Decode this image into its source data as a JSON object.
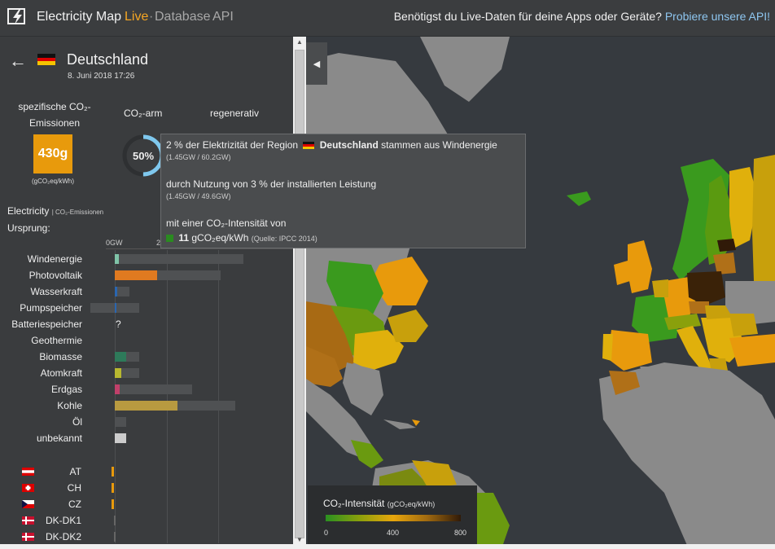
{
  "header": {
    "brand": "Electricity Map",
    "nav_live": "Live",
    "nav_database": "Database",
    "nav_api": "API",
    "nav_sep": "·",
    "promo_text": "Benötigst du Live-Daten für deine Apps oder Geräte?",
    "promo_link": "Probiere unsere API!"
  },
  "zone": {
    "back_icon": "←",
    "name": "Deutschland",
    "date": "8. Juni 2018 17:26",
    "co2_label": "spezifische CO₂-Emissionen",
    "co2_value": "430g",
    "co2_unit": "(gCO₂eq/kWh)",
    "lowcarbon_label": "CO₂-arm",
    "lowcarbon_value": "50%",
    "lowcarbon_fraction": 0.5,
    "renewable_label": "regenerativ"
  },
  "breakdown": {
    "title": "Electricity",
    "title_sub": "| CO₂-Emissionen",
    "origin_label": "Ursprung:",
    "axis_0": "0GW",
    "axis_2": "2",
    "rows": [
      {
        "label": "Windenergie",
        "color": "#7fc4a8"
      },
      {
        "label": "Photovoltaik",
        "color": "#e07a20"
      },
      {
        "label": "Wasserkraft",
        "color": "#2a66b0"
      },
      {
        "label": "Pumpspeicher",
        "color": "#2a66b0"
      },
      {
        "label": "Batteriespeicher",
        "note": "?"
      },
      {
        "label": "Geothermie"
      },
      {
        "label": "Biomasse",
        "color": "#2e7a5a"
      },
      {
        "label": "Atomkraft",
        "color": "#b8b830"
      },
      {
        "label": "Erdgas",
        "color": "#c0406a"
      },
      {
        "label": "Kohle",
        "color": "#b89a40"
      },
      {
        "label": "Öl"
      },
      {
        "label": "unbekannt",
        "color": "#cccccc"
      }
    ],
    "exchanges": [
      {
        "label": "AT"
      },
      {
        "label": "CH"
      },
      {
        "label": "CZ"
      },
      {
        "label": "DK-DK1"
      },
      {
        "label": "DK-DK2"
      }
    ]
  },
  "tooltip": {
    "line1_pre": "2 % der Elektrizität der Region",
    "line1_zone": "Deutschland",
    "line1_post": "stammen aus Windenergie",
    "line1_detail": "(1.45GW / 60.2GW)",
    "line2": "durch Nutzung von 3 % der installierten Leistung",
    "line2_detail": "(1.45GW / 49.6GW)",
    "line3": "mit einer CO₂-Intensität von",
    "intensity_value": "11",
    "intensity_unit": "gCO₂eq/kWh",
    "source": "(Quelle: IPCC 2014)"
  },
  "legend": {
    "title": "CO₂-Intensität",
    "unit": "(gCO₂eq/kWh)",
    "tick_0": "0",
    "tick_400": "400",
    "tick_800": "800"
  },
  "map": {
    "collapse_icon": "◀"
  }
}
